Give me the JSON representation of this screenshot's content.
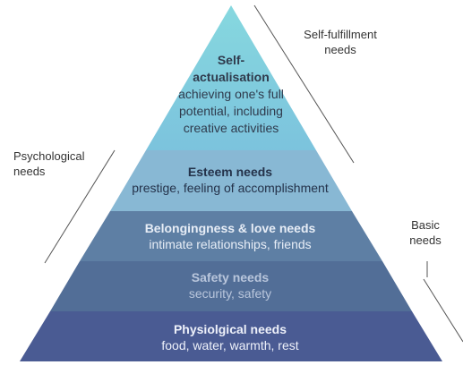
{
  "pyramid": {
    "layers": [
      {
        "title": "Self-\nactualisation",
        "title_lines": [
          "Self-",
          "actualisation"
        ],
        "desc_lines": [
          "achieving one's full",
          "potential, including",
          "creative activities"
        ],
        "color": "#8fd3e0"
      },
      {
        "title": "Esteem needs",
        "desc": "prestige, feeling of accomplishment",
        "color": "#8ab7d4"
      },
      {
        "title": "Belongingness & love needs",
        "desc": "intimate relationships, friends",
        "color": "#5d7fa3"
      },
      {
        "title": "Safety needs",
        "desc": "security, safety",
        "color": "#516e96"
      },
      {
        "title": "Physiolgical needs",
        "desc": "food, water, warmth, rest",
        "color": "#4a5a93"
      }
    ]
  },
  "labels": {
    "self_fulfillment": [
      "Self-fulfillment",
      "needs"
    ],
    "psychological": [
      "Psychological",
      "needs"
    ],
    "basic": [
      "Basic",
      "needs"
    ]
  }
}
